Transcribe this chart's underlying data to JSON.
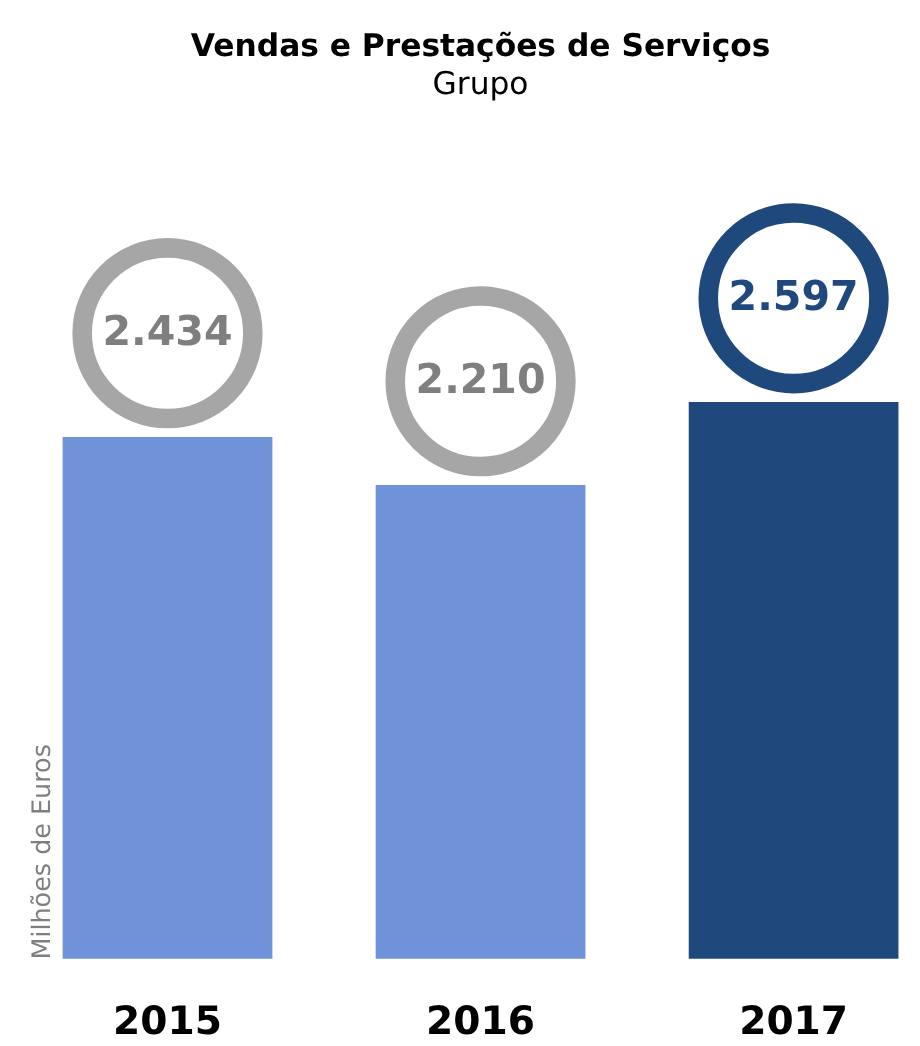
{
  "chart_data": {
    "type": "bar",
    "title": "Vendas e Prestações de Serviços",
    "subtitle": "Grupo",
    "ylabel": "Milhões de Euros",
    "categories": [
      "2015",
      "2016",
      "2017"
    ],
    "values": [
      2434,
      2210,
      2597
    ],
    "colors": [
      "#7092d8",
      "#7092d8",
      "#1f497d"
    ],
    "value_labels": [
      "2.434",
      "2.210",
      "2.597"
    ],
    "tick_labels": "x",
    "grid": false
  }
}
